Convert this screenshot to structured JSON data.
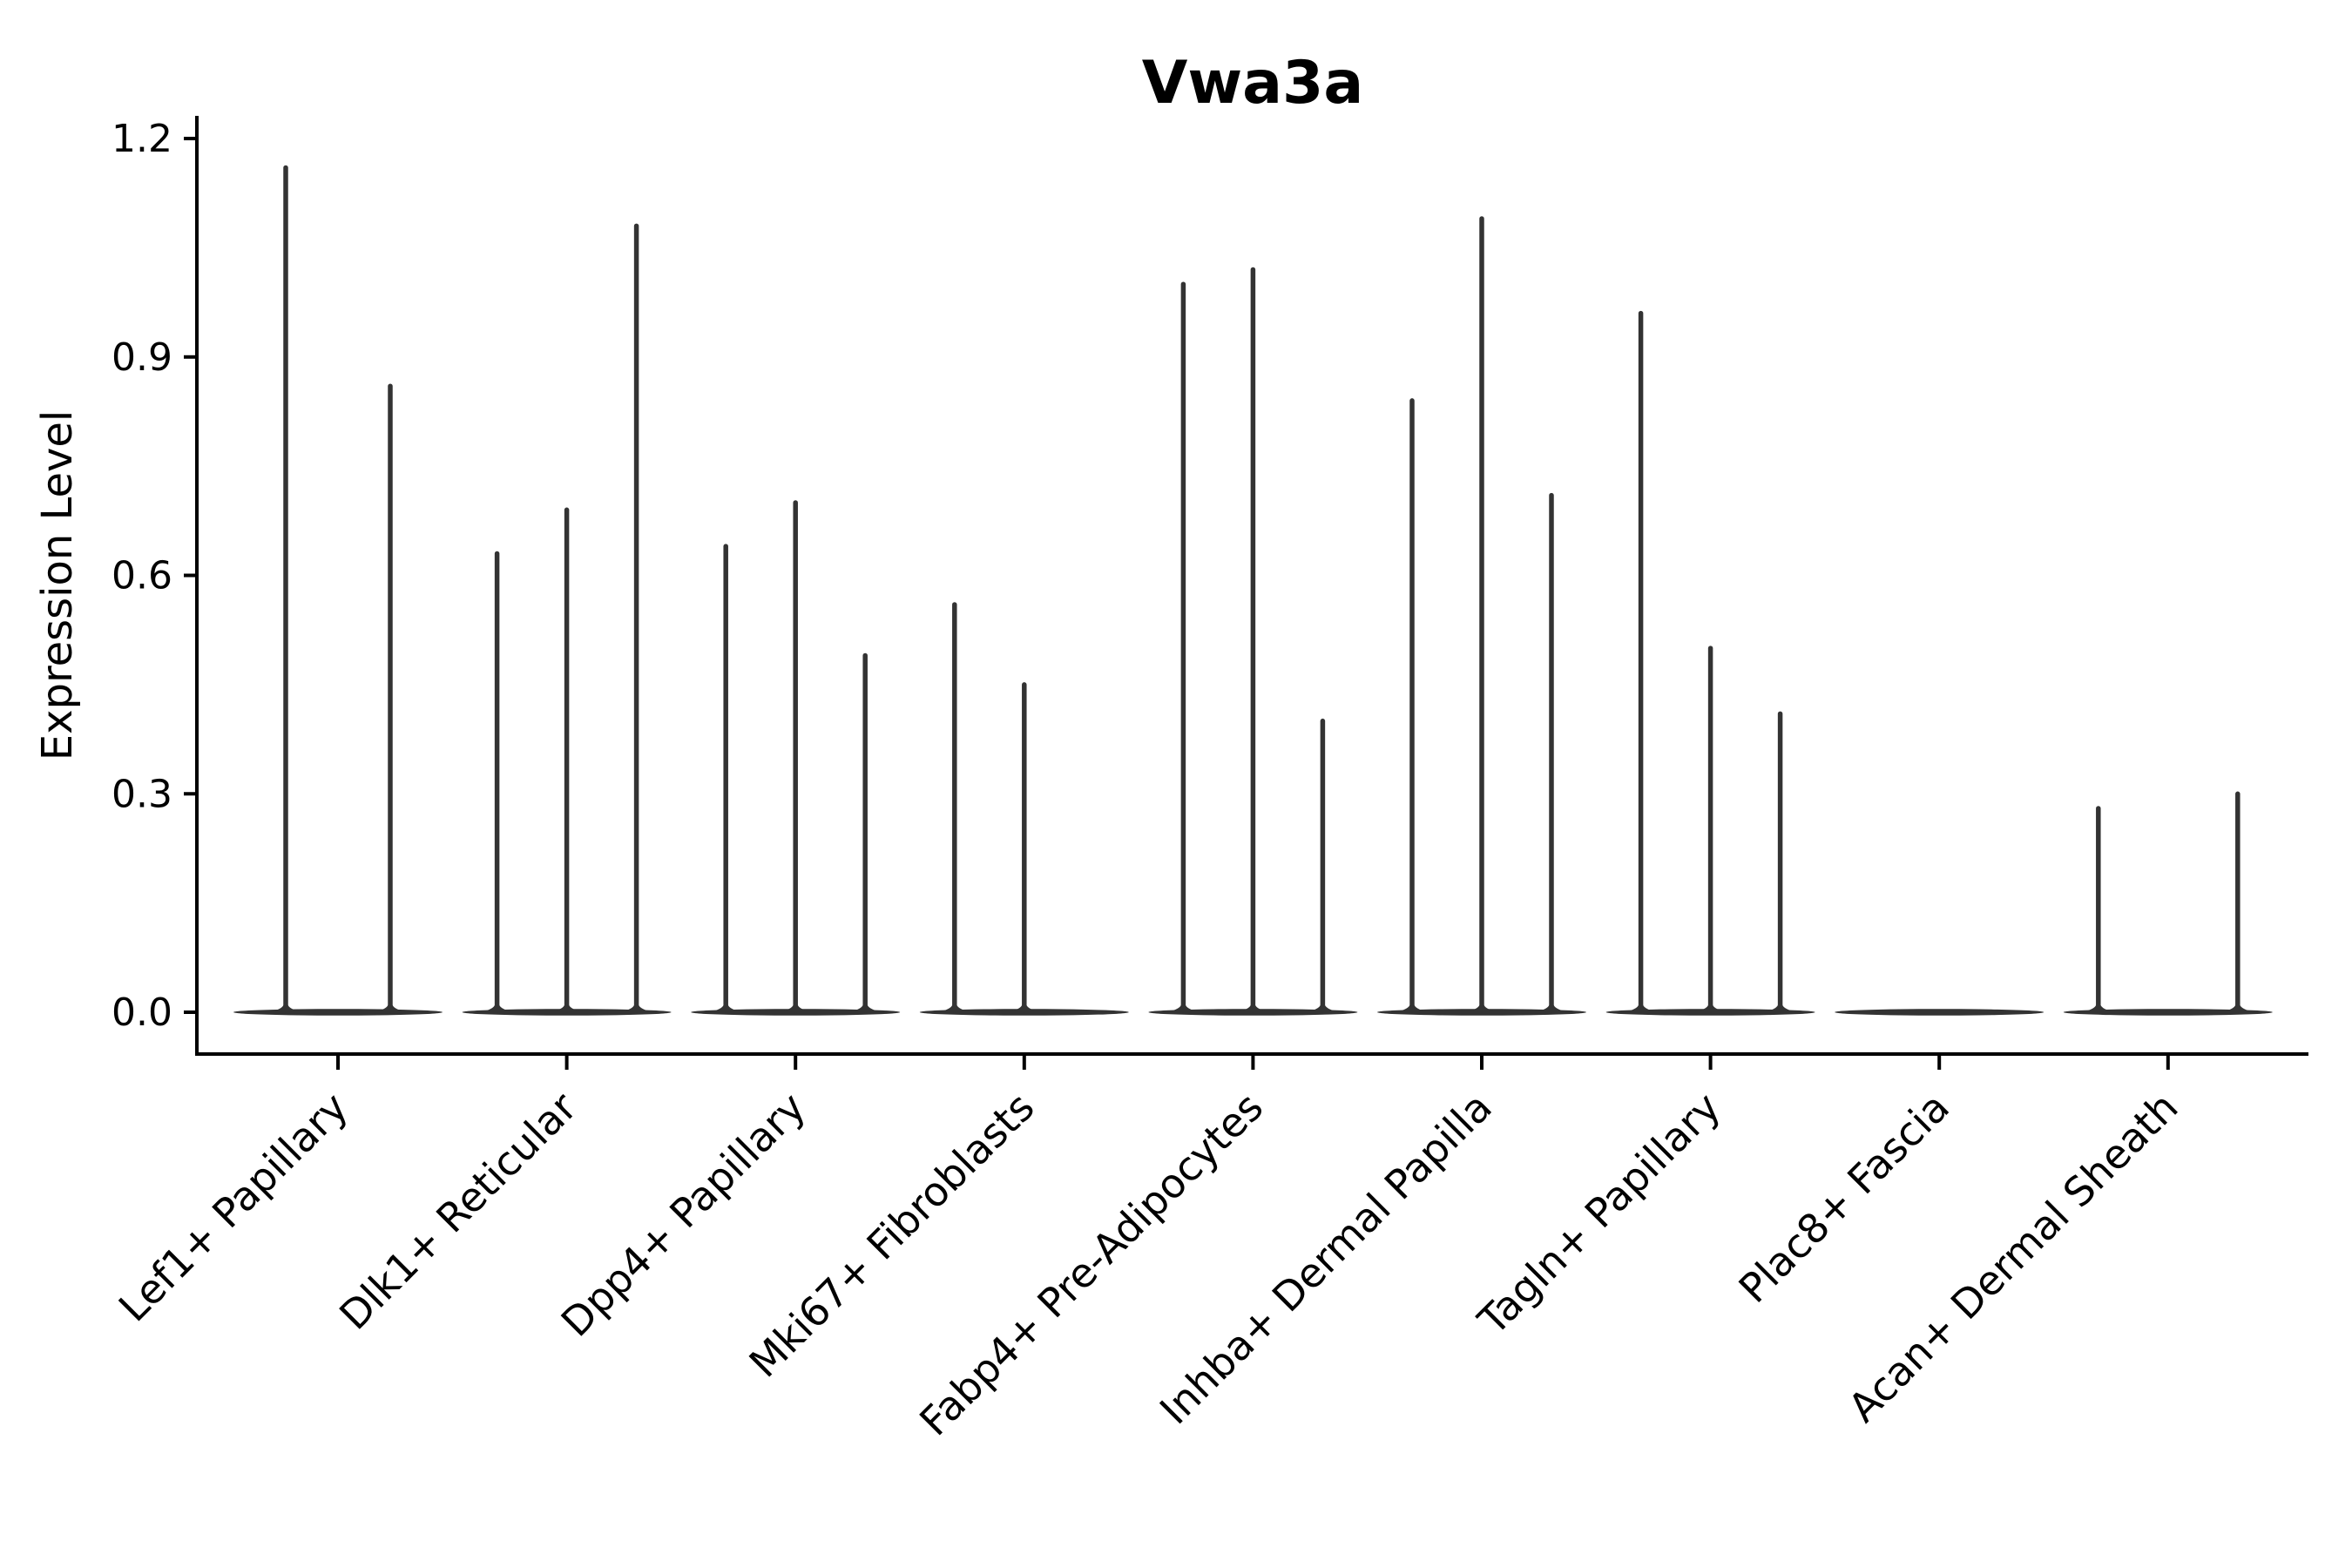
{
  "chart_data": {
    "type": "violin",
    "title": "Vwa3a",
    "ylabel": "Expression Level",
    "xlabel": "",
    "ylim": [
      0.0,
      1.2
    ],
    "yticks": [
      "0.0",
      "0.3",
      "0.6",
      "0.9",
      "1.2"
    ],
    "grid": false,
    "legend": "none",
    "description": "Thin spike-shaped violins of expression level per fibroblast cluster; up to three violins per category with a flat density blob at zero expression.",
    "colors": {
      "violin": "#333333",
      "ink": "#000000",
      "background": "#ffffff"
    },
    "categories": [
      "Lef1+ Papillary",
      "Dlk1+ Reticular",
      "Dpp4+ Papillary",
      "Mki67+ Fibroblasts",
      "Fabp4+ Pre-Adipocytes",
      "Inhba+ Dermal Papilla",
      "Tagln+ Papillary",
      "Plac8+ Fascia",
      "Acan+ Dermal Sheath"
    ],
    "groups": [
      {
        "label": "Lef1+ Papillary",
        "violins": [
          {
            "offset": -60,
            "peak": 1.16
          },
          {
            "offset": 60,
            "peak": 0.86
          }
        ]
      },
      {
        "label": "Dlk1+ Reticular",
        "violins": [
          {
            "offset": -80,
            "peak": 0.63
          },
          {
            "offset": 0,
            "peak": 0.69
          },
          {
            "offset": 80,
            "peak": 1.08
          }
        ]
      },
      {
        "label": "Dpp4+ Papillary",
        "violins": [
          {
            "offset": -80,
            "peak": 0.64
          },
          {
            "offset": 0,
            "peak": 0.7
          },
          {
            "offset": 80,
            "peak": 0.49
          }
        ]
      },
      {
        "label": "Mki67+ Fibroblasts",
        "violins": [
          {
            "offset": -80,
            "peak": 0.56
          },
          {
            "offset": 0,
            "peak": 0.45
          }
        ]
      },
      {
        "label": "Fabp4+ Pre-Adipocytes",
        "violins": [
          {
            "offset": -80,
            "peak": 1.0
          },
          {
            "offset": 0,
            "peak": 1.02
          },
          {
            "offset": 80,
            "peak": 0.4
          }
        ]
      },
      {
        "label": "Inhba+ Dermal Papilla",
        "violins": [
          {
            "offset": -80,
            "peak": 0.84
          },
          {
            "offset": 0,
            "peak": 1.09
          },
          {
            "offset": 80,
            "peak": 0.71
          }
        ]
      },
      {
        "label": "Tagln+ Papillary",
        "violins": [
          {
            "offset": -80,
            "peak": 0.96
          },
          {
            "offset": 0,
            "peak": 0.5
          },
          {
            "offset": 80,
            "peak": 0.41
          }
        ]
      },
      {
        "label": "Plac8+ Fascia",
        "violins": []
      },
      {
        "label": "Acan+ Dermal Sheath",
        "violins": [
          {
            "offset": -80,
            "peak": 0.28
          },
          {
            "offset": 80,
            "peak": 0.3
          }
        ]
      }
    ]
  }
}
